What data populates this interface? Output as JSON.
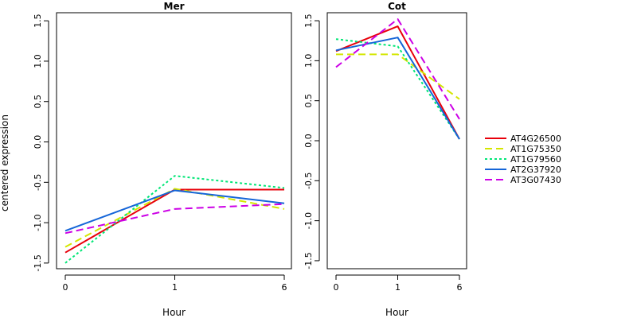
{
  "chart_data": {
    "type": "line",
    "ylabel": "centered expression",
    "xlabel": "Hour",
    "x": [
      0,
      1,
      6
    ],
    "x_tick_labels": [
      "0",
      "1",
      "6"
    ],
    "y_ticks": [
      -1.5,
      -1.0,
      -0.5,
      0.0,
      0.5,
      1.0,
      1.5
    ],
    "y_tick_labels": [
      "-1.5",
      "-1.0",
      "-0.5",
      "0.0",
      "0.5",
      "1.0",
      "1.5"
    ],
    "legend_position": "right",
    "grid": false,
    "series_styles": [
      {
        "name": "AT4G26500",
        "color": "#e8000b",
        "dash": "solid"
      },
      {
        "name": "AT1G75350",
        "color": "#d4e600",
        "dash": "dashed"
      },
      {
        "name": "AT1G79560",
        "color": "#00e676",
        "dash": "dotted"
      },
      {
        "name": "AT2G37920",
        "color": "#1565d8",
        "dash": "solid"
      },
      {
        "name": "AT3G07430",
        "color": "#cc00e6",
        "dash": "dashed"
      }
    ],
    "panels": [
      {
        "title": "Mer",
        "ylim": [
          -1.57,
          1.6
        ],
        "series": [
          {
            "name": "AT4G26500",
            "values": [
              -1.37,
              -0.59,
              -0.59
            ]
          },
          {
            "name": "AT1G75350",
            "values": [
              -1.3,
              -0.58,
              -0.83
            ]
          },
          {
            "name": "AT1G79560",
            "values": [
              -1.5,
              -0.42,
              -0.57
            ]
          },
          {
            "name": "AT2G37920",
            "values": [
              -1.1,
              -0.6,
              -0.76
            ]
          },
          {
            "name": "AT3G07430",
            "values": [
              -1.13,
              -0.83,
              -0.77
            ]
          }
        ]
      },
      {
        "title": "Cot",
        "ylim": [
          -1.6,
          1.6
        ],
        "series": [
          {
            "name": "AT4G26500",
            "values": [
              1.12,
              1.43,
              0.02
            ]
          },
          {
            "name": "AT1G75350",
            "values": [
              1.08,
              1.08,
              0.52
            ]
          },
          {
            "name": "AT1G79560",
            "values": [
              1.27,
              1.18,
              0.02
            ]
          },
          {
            "name": "AT2G37920",
            "values": [
              1.13,
              1.29,
              0.02
            ]
          },
          {
            "name": "AT3G07430",
            "values": [
              0.92,
              1.52,
              0.27
            ]
          }
        ]
      }
    ]
  }
}
